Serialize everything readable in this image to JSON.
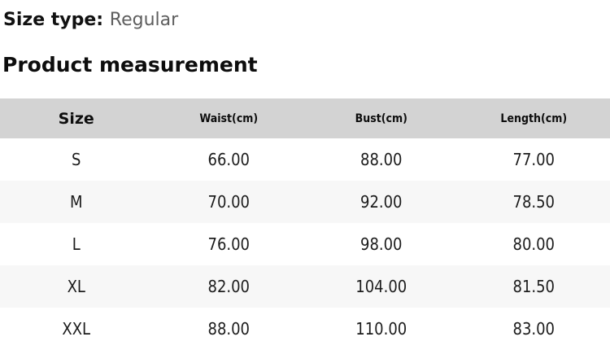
{
  "page": {
    "size_type_label": "Size type:",
    "size_type_value": "Regular",
    "section_title": "Product measurement"
  },
  "table": {
    "columns": [
      "Size",
      "Waist(cm)",
      "Bust(cm)",
      "Length(cm)"
    ],
    "rows": [
      {
        "size": "S",
        "waist": "66.00",
        "bust": "88.00",
        "length": "77.00"
      },
      {
        "size": "M",
        "waist": "70.00",
        "bust": "92.00",
        "length": "78.50"
      },
      {
        "size": "L",
        "waist": "76.00",
        "bust": "98.00",
        "length": "80.00"
      },
      {
        "size": "XL",
        "waist": "82.00",
        "bust": "104.00",
        "length": "81.50"
      },
      {
        "size": "XXL",
        "waist": "88.00",
        "bust": "110.00",
        "length": "83.00"
      }
    ]
  },
  "colors": {
    "header_bg": "#d3d3d3",
    "stripe_bg": "#f7f7f7",
    "text": "#1c1c1c",
    "muted_text": "#5e5e5e"
  }
}
